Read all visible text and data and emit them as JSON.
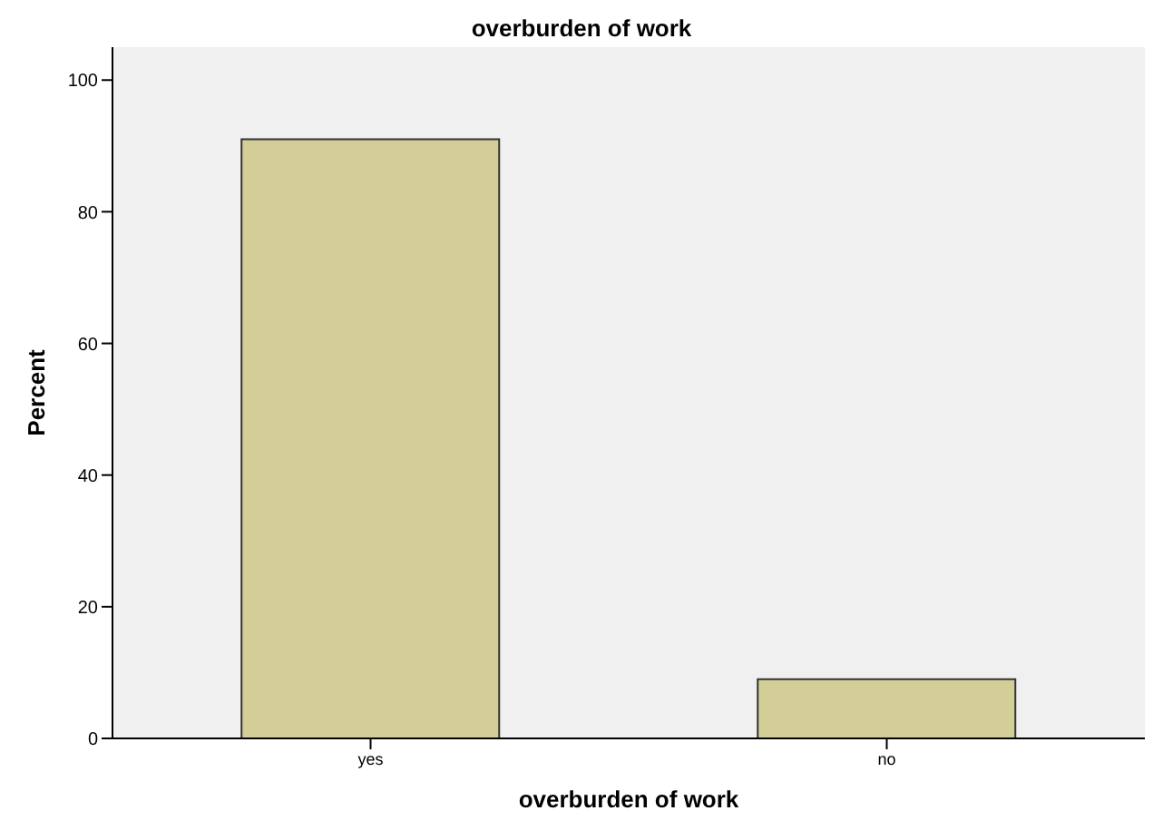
{
  "chart_data": {
    "type": "bar",
    "title": "overburden of work",
    "xlabel": "overburden of work",
    "ylabel": "Percent",
    "categories": [
      "yes",
      "no"
    ],
    "values": [
      91,
      9
    ],
    "color": "#d3ce97",
    "ylim": [
      0,
      105
    ],
    "yticks": [
      0,
      20,
      40,
      60,
      80,
      100
    ],
    "grid": false
  }
}
